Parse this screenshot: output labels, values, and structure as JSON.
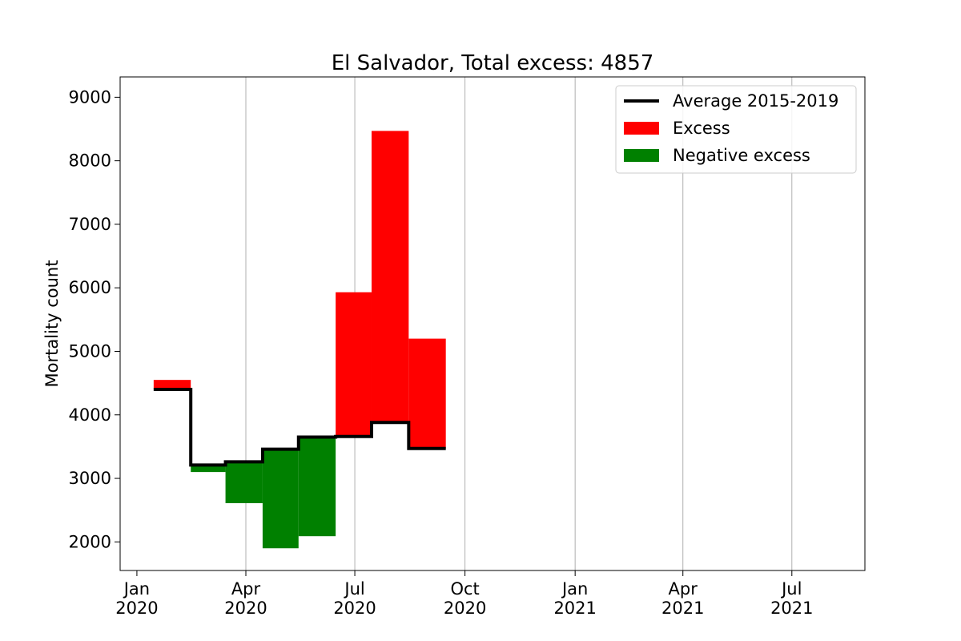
{
  "chart_data": {
    "type": "step-bar",
    "title": "El Salvador, Total excess: 4857",
    "xlabel": "",
    "ylabel": "Mortality count",
    "x_range": [
      "2019-12-18",
      "2021-08-31"
    ],
    "y_range": [
      1550,
      9320
    ],
    "y_ticks": [
      2000,
      3000,
      4000,
      5000,
      6000,
      7000,
      8000,
      9000
    ],
    "x_ticks": [
      {
        "date": "2020-01-01",
        "line1": "Jan",
        "line2": "2020"
      },
      {
        "date": "2020-04-01",
        "line1": "Apr",
        "line2": "2020"
      },
      {
        "date": "2020-07-01",
        "line1": "Jul",
        "line2": "2020"
      },
      {
        "date": "2020-10-01",
        "line1": "Oct",
        "line2": "2020"
      },
      {
        "date": "2021-01-01",
        "line1": "Jan",
        "line2": "2021"
      },
      {
        "date": "2021-04-01",
        "line1": "Apr",
        "line2": "2021"
      },
      {
        "date": "2021-07-01",
        "line1": "Jul",
        "line2": "2021"
      }
    ],
    "grid": "vertical",
    "legend_position": "top-right",
    "legend": [
      {
        "label": "Average 2015-2019",
        "kind": "line",
        "color": "#000000"
      },
      {
        "label": "Excess",
        "kind": "patch",
        "color": "#ff0000"
      },
      {
        "label": "Negative excess",
        "kind": "patch",
        "color": "#008000"
      }
    ],
    "series": [
      {
        "name": "Average 2015-2019",
        "periods": [
          {
            "start": "2020-01-15",
            "end": "2020-02-15",
            "average": 4400,
            "actual": 4550
          },
          {
            "start": "2020-02-15",
            "end": "2020-03-15",
            "average": 3210,
            "actual": 3100
          },
          {
            "start": "2020-03-15",
            "end": "2020-04-15",
            "average": 3260,
            "actual": 2610
          },
          {
            "start": "2020-04-15",
            "end": "2020-05-15",
            "average": 3460,
            "actual": 1900
          },
          {
            "start": "2020-05-15",
            "end": "2020-06-15",
            "average": 3650,
            "actual": 2090
          },
          {
            "start": "2020-06-15",
            "end": "2020-07-15",
            "average": 3660,
            "actual": 5930
          },
          {
            "start": "2020-07-15",
            "end": "2020-08-15",
            "average": 3880,
            "actual": 8470
          },
          {
            "start": "2020-08-15",
            "end": "2020-09-15",
            "average": 3470,
            "actual": 5200
          }
        ]
      }
    ],
    "colors": {
      "excess": "#ff0000",
      "negative": "#008000",
      "average": "#000000",
      "grid": "#b0b0b0"
    }
  }
}
